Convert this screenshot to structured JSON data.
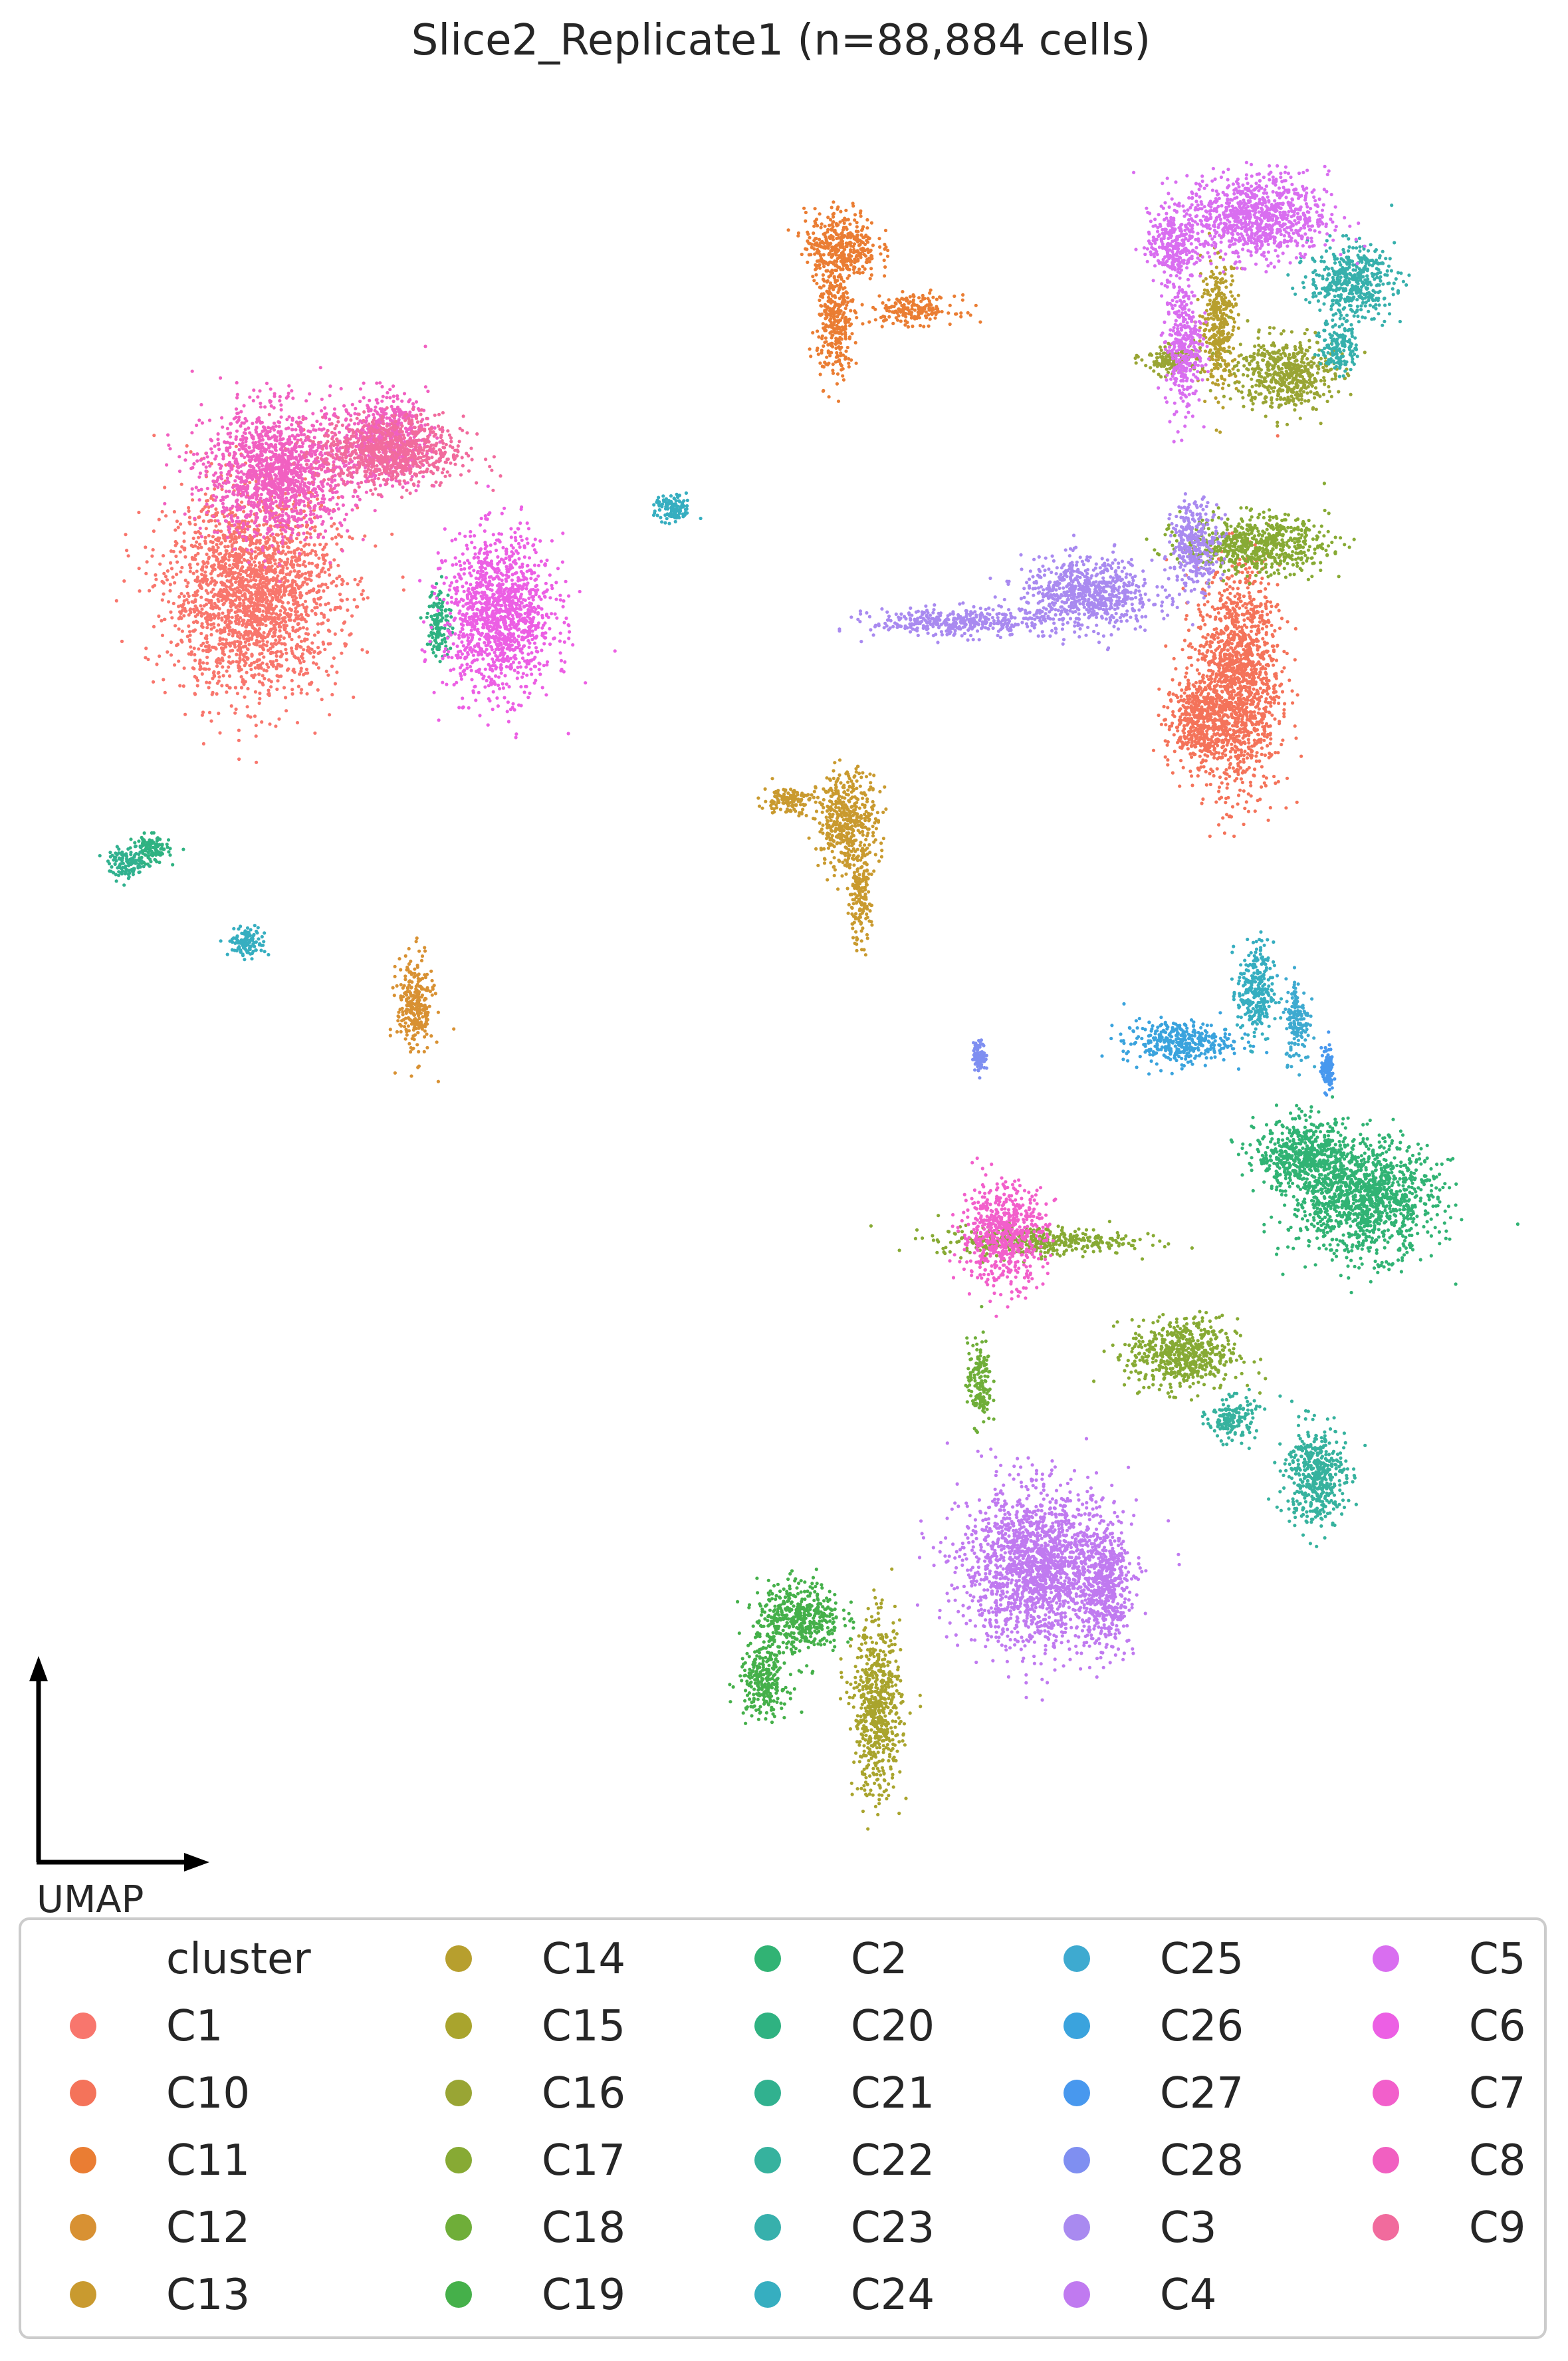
{
  "chart_data": {
    "type": "scatter",
    "title": "Slice2_Replicate1 (n=88,884 cells)",
    "axis_label": "UMAP",
    "legend": {
      "title": "cluster",
      "placement": "bottom",
      "columns": 5
    },
    "grid": false,
    "series": [
      {
        "name": "C1",
        "color": "#f8766d",
        "regions": [
          [
            -8.5,
            6.5,
            1.4,
            1.4
          ]
        ]
      },
      {
        "name": "C10",
        "color": "#f4735a",
        "regions": [
          [
            7.9,
            5.3,
            0.7,
            1.6
          ],
          [
            7.2,
            4.7,
            0.5,
            0.6
          ]
        ]
      },
      {
        "name": "C11",
        "color": "#ea7d33",
        "regions": [
          [
            1.3,
            11.4,
            0.6,
            0.5
          ],
          [
            1.2,
            10.3,
            0.3,
            0.8
          ],
          [
            2.5,
            10.5,
            0.7,
            0.2
          ]
        ]
      },
      {
        "name": "C12",
        "color": "#d89133",
        "regions": [
          [
            -5.8,
            0.7,
            0.3,
            0.7
          ]
        ]
      },
      {
        "name": "C13",
        "color": "#c99a2f",
        "regions": [
          [
            1.4,
            3.3,
            0.5,
            0.7
          ],
          [
            0.4,
            3.6,
            0.4,
            0.2
          ],
          [
            1.6,
            2.2,
            0.2,
            0.6
          ]
        ]
      },
      {
        "name": "C14",
        "color": "#b79f2e",
        "regions": [
          [
            7.6,
            10.3,
            0.3,
            0.9
          ]
        ]
      },
      {
        "name": "C15",
        "color": "#a9a42d",
        "regions": [
          [
            1.9,
            -9.2,
            0.4,
            1.2
          ]
        ]
      },
      {
        "name": "C16",
        "color": "#99a534",
        "regions": [
          [
            8.7,
            9.6,
            0.8,
            0.5
          ],
          [
            6.8,
            9.8,
            0.5,
            0.2
          ]
        ]
      },
      {
        "name": "C17",
        "color": "#87aa34",
        "regions": [
          [
            8.2,
            7.2,
            1.2,
            0.4
          ],
          [
            7.0,
            -4.2,
            0.9,
            0.5
          ],
          [
            4.5,
            -2.6,
            1.6,
            0.2
          ]
        ]
      },
      {
        "name": "C18",
        "color": "#6fae39",
        "regions": [
          [
            3.6,
            -4.6,
            0.2,
            0.6
          ]
        ]
      },
      {
        "name": "C19",
        "color": "#45b04a",
        "regions": [
          [
            0.6,
            -7.9,
            0.7,
            0.5
          ],
          [
            0.0,
            -8.8,
            0.4,
            0.5
          ]
        ]
      },
      {
        "name": "C2",
        "color": "#31b374",
        "regions": [
          [
            10.0,
            -2.0,
            1.2,
            0.8
          ],
          [
            9.0,
            -1.4,
            0.8,
            0.5
          ]
        ]
      },
      {
        "name": "C20",
        "color": "#2fb281",
        "regions": [
          [
            -10.2,
            2.9,
            0.3,
            0.2
          ],
          [
            -5.4,
            6.1,
            0.2,
            0.5
          ]
        ]
      },
      {
        "name": "C21",
        "color": "#31b18f",
        "regions": [
          [
            -10.6,
            2.7,
            0.3,
            0.2
          ]
        ]
      },
      {
        "name": "C22",
        "color": "#36b29e",
        "regions": [
          [
            9.2,
            -5.9,
            0.5,
            0.7
          ],
          [
            7.8,
            -5.1,
            0.4,
            0.3
          ]
        ]
      },
      {
        "name": "C23",
        "color": "#37b0ac",
        "regions": [
          [
            9.8,
            10.9,
            0.7,
            0.5
          ],
          [
            9.6,
            10.0,
            0.3,
            0.4
          ]
        ]
      },
      {
        "name": "C24",
        "color": "#36aec0",
        "regions": [
          [
            -8.6,
            1.6,
            0.3,
            0.2
          ],
          [
            -1.5,
            7.7,
            0.3,
            0.2
          ],
          [
            8.2,
            0.9,
            0.3,
            0.7
          ]
        ]
      },
      {
        "name": "C25",
        "color": "#3eaad0",
        "regions": [
          [
            8.9,
            0.5,
            0.2,
            0.6
          ]
        ]
      },
      {
        "name": "C26",
        "color": "#3aa3dd",
        "regions": [
          [
            6.9,
            0.2,
            0.9,
            0.3
          ]
        ]
      },
      {
        "name": "C27",
        "color": "#4898ee",
        "regions": [
          [
            9.4,
            -0.2,
            0.1,
            0.3
          ]
        ]
      },
      {
        "name": "C28",
        "color": "#7f8ff1",
        "regions": [
          [
            3.6,
            0.0,
            0.1,
            0.2
          ]
        ]
      },
      {
        "name": "C3",
        "color": "#a98af0",
        "regions": [
          [
            5.4,
            6.5,
            1.1,
            0.5
          ],
          [
            3.2,
            6.1,
            1.4,
            0.2
          ],
          [
            7.2,
            7.2,
            0.4,
            0.6
          ]
        ]
      },
      {
        "name": "C4",
        "color": "#c07af0",
        "regions": [
          [
            4.6,
            -7.2,
            1.3,
            1.1
          ],
          [
            5.7,
            -7.5,
            0.4,
            0.8
          ]
        ]
      },
      {
        "name": "C5",
        "color": "#d96ef0",
        "regions": [
          [
            8.2,
            11.8,
            1.2,
            0.6
          ],
          [
            7.0,
            10.0,
            0.3,
            0.9
          ],
          [
            6.8,
            11.4,
            0.4,
            0.5
          ]
        ]
      },
      {
        "name": "C6",
        "color": "#ec5fe4",
        "regions": [
          [
            -4.4,
            6.2,
            0.9,
            1.1
          ]
        ]
      },
      {
        "name": "C7",
        "color": "#f25fcb",
        "regions": [
          [
            4.0,
            -2.5,
            0.7,
            0.7
          ]
        ]
      },
      {
        "name": "C8",
        "color": "#f160c1",
        "regions": [
          [
            -8.1,
            8.2,
            1.2,
            0.9
          ],
          [
            -6.3,
            8.7,
            0.7,
            0.6
          ]
        ]
      },
      {
        "name": "C9",
        "color": "#f16b9d",
        "regions": [
          [
            -6.2,
            8.5,
            1.2,
            0.5
          ]
        ]
      }
    ]
  }
}
